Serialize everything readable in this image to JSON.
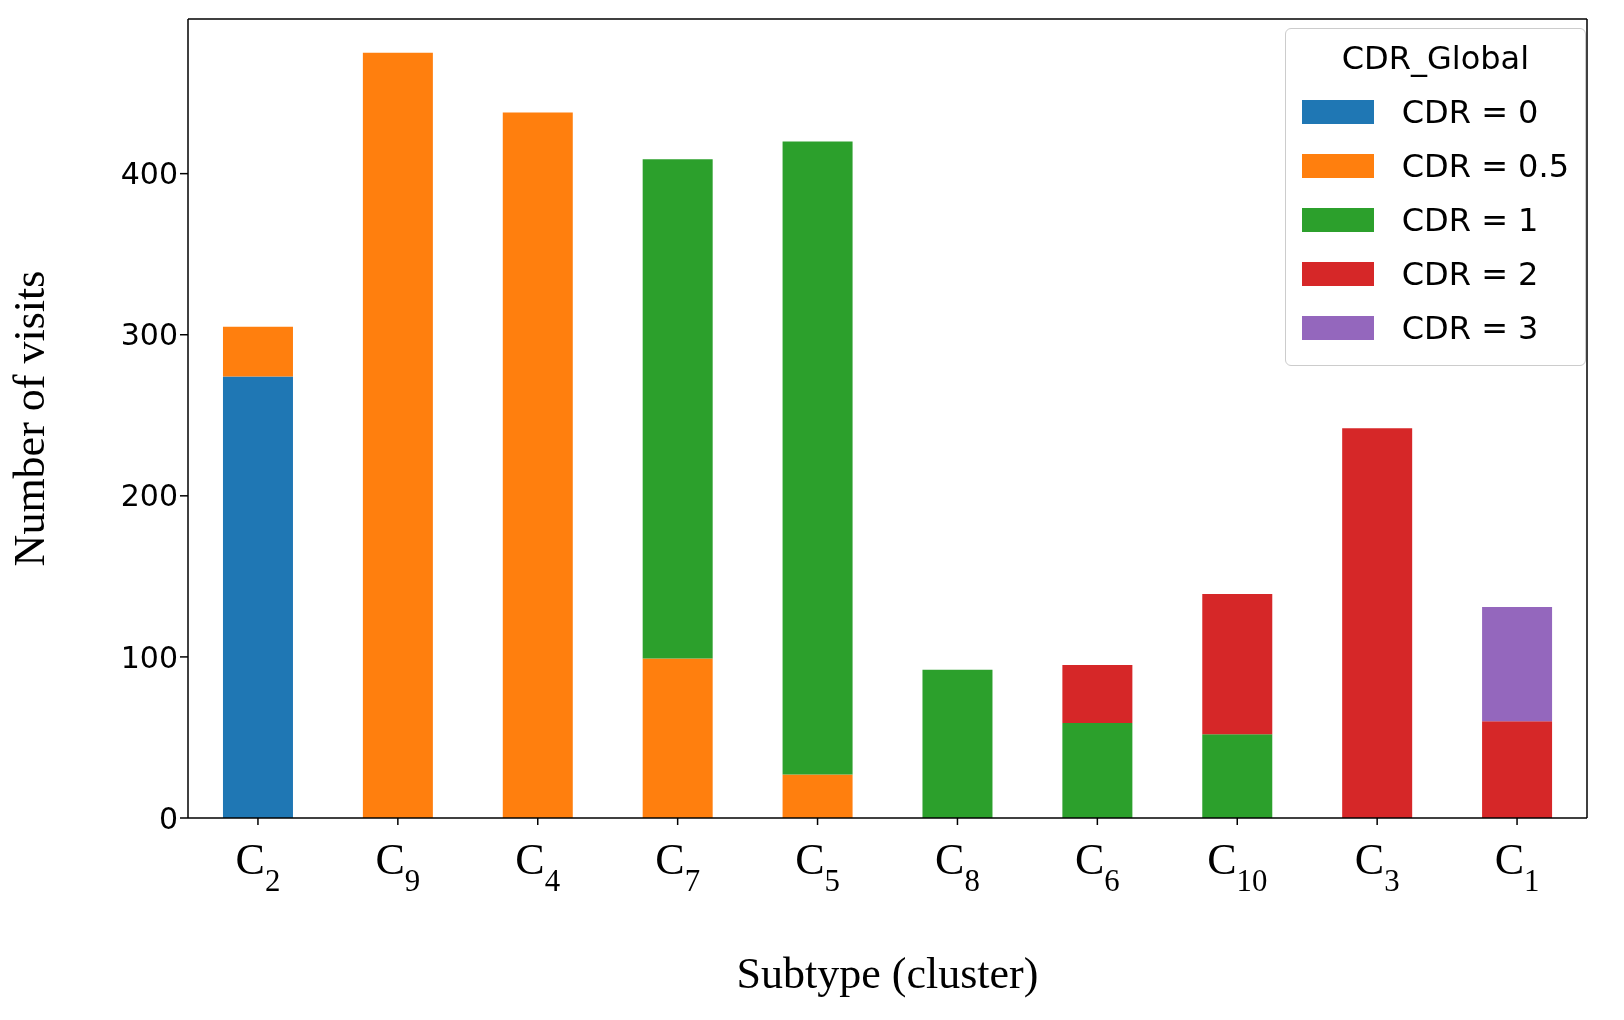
{
  "chart_data": {
    "type": "bar",
    "stacked": true,
    "xlabel": "Subtype (cluster)",
    "ylabel": "Number of visits",
    "legend_title": "CDR_Global",
    "legend": "top right",
    "categories": [
      "C$_{2}$",
      "C$_{9}$",
      "C$_{4}$",
      "C$_{7}$",
      "C$_{5}$",
      "C$_{8}$",
      "C$_{6}$",
      "C$_{10}$",
      "C$_{3}$",
      "C$_{1}$"
    ],
    "series": [
      {
        "name": "CDR = 0",
        "color": "#1f77b4",
        "values": [
          274,
          null,
          null,
          null,
          null,
          null,
          null,
          null,
          null,
          null
        ]
      },
      {
        "name": "CDR = 0.5",
        "color": "#ff7f0e",
        "values": [
          31,
          475,
          438,
          99,
          27,
          null,
          null,
          null,
          null,
          null
        ]
      },
      {
        "name": "CDR = 1",
        "color": "#2ca02c",
        "values": [
          null,
          null,
          null,
          310,
          393,
          92,
          59,
          52,
          null,
          null
        ]
      },
      {
        "name": "CDR = 2",
        "color": "#d62728",
        "values": [
          null,
          null,
          null,
          null,
          null,
          null,
          36,
          87,
          242,
          60
        ]
      },
      {
        "name": "CDR = 3",
        "color": "#9467bd",
        "values": [
          null,
          null,
          null,
          null,
          null,
          null,
          null,
          null,
          null,
          71
        ]
      }
    ],
    "ylim": [
      0,
      496
    ],
    "yticks": [
      0,
      100,
      200,
      300,
      400
    ]
  }
}
